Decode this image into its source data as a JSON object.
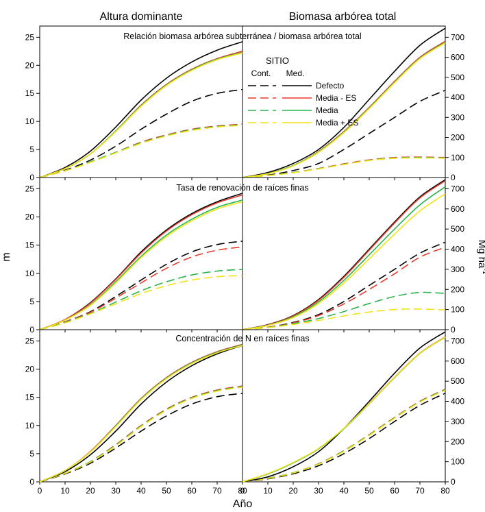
{
  "figure": {
    "col_titles": [
      "Altura dominante",
      "Biomasa arbórea total"
    ],
    "y_left_label": "m",
    "y_right_label": "Mg ha",
    "y_right_label_sup": "-1",
    "x_label": "Año"
  },
  "legend": {
    "header": "SITIO",
    "col_cont": "Cont.",
    "col_med": "Med.",
    "entries": [
      {
        "label": "Defecto",
        "color": "#000000"
      },
      {
        "label": "Media - ES",
        "color": "#e8392a"
      },
      {
        "label": "Media",
        "color": "#2ab34a"
      },
      {
        "label": "Media + ES",
        "color": "#f2e21a"
      }
    ]
  },
  "chart_data": [
    {
      "type": "line",
      "row_title": "Relación biomasa arbórea subterránea / biomasa arbórea total",
      "x": [
        0,
        10,
        20,
        30,
        40,
        50,
        60,
        70,
        80
      ],
      "xlim": [
        0,
        80
      ],
      "xticks": [
        0,
        10,
        20,
        30,
        40,
        50,
        60,
        70,
        80
      ],
      "left": {
        "ylabel": "m",
        "ylim": [
          0,
          27
        ],
        "yticks": [
          0,
          5,
          10,
          15,
          20,
          25
        ],
        "series": [
          {
            "name": "Defecto",
            "site": "Med.",
            "color": "#000000",
            "values": [
              0,
              1.8,
              4.7,
              9.0,
              13.8,
              17.7,
              20.6,
              22.7,
              24.2
            ]
          },
          {
            "name": "Media - ES",
            "site": "Med.",
            "color": "#e8392a",
            "values": [
              0,
              1.6,
              4.2,
              8.3,
              12.9,
              16.6,
              19.3,
              21.2,
              22.5
            ]
          },
          {
            "name": "Media",
            "site": "Med.",
            "color": "#2ab34a",
            "values": [
              0,
              1.6,
              4.2,
              8.3,
              12.8,
              16.5,
              19.2,
              21.1,
              22.3
            ]
          },
          {
            "name": "Media + ES",
            "site": "Med.",
            "color": "#f2e21a",
            "values": [
              0,
              1.6,
              4.2,
              8.2,
              12.7,
              16.4,
              19.1,
              21.0,
              22.2
            ]
          },
          {
            "name": "Defecto",
            "site": "Cont.",
            "color": "#000000",
            "values": [
              0,
              1.3,
              3.1,
              5.6,
              8.6,
              11.3,
              13.6,
              15.0,
              15.7
            ]
          },
          {
            "name": "Media - ES",
            "site": "Cont.",
            "color": "#e8392a",
            "values": [
              0,
              1.2,
              2.8,
              4.5,
              6.3,
              7.6,
              8.6,
              9.2,
              9.5
            ]
          },
          {
            "name": "Media",
            "site": "Cont.",
            "color": "#2ab34a",
            "values": [
              0,
              1.2,
              2.8,
              4.5,
              6.2,
              7.5,
              8.5,
              9.1,
              9.4
            ]
          },
          {
            "name": "Media + ES",
            "site": "Cont.",
            "color": "#f2e21a",
            "values": [
              0,
              1.2,
              2.7,
              4.4,
              6.1,
              7.4,
              8.4,
              9.0,
              9.3
            ]
          }
        ]
      },
      "right": {
        "ylabel": "Mg ha-1",
        "ylim": [
          0,
          756
        ],
        "yticks": [
          0,
          100,
          200,
          300,
          400,
          500,
          600,
          700
        ],
        "series": [
          {
            "name": "Defecto",
            "site": "Med.",
            "color": "#000000",
            "values": [
              0,
              25,
              70,
              140,
              250,
              390,
              530,
              660,
              745
            ]
          },
          {
            "name": "Media - ES",
            "site": "Med.",
            "color": "#e8392a",
            "values": [
              0,
              20,
              60,
              130,
              230,
              350,
              480,
              600,
              680
            ]
          },
          {
            "name": "Media",
            "site": "Med.",
            "color": "#2ab34a",
            "values": [
              0,
              20,
              60,
              128,
              227,
              347,
              476,
              596,
              675
            ]
          },
          {
            "name": "Media + ES",
            "site": "Med.",
            "color": "#f2e21a",
            "values": [
              0,
              19,
              58,
              126,
              224,
              344,
              473,
              593,
              672
            ]
          },
          {
            "name": "Defecto",
            "site": "Cont.",
            "color": "#000000",
            "values": [
              0,
              12,
              35,
              70,
              140,
              220,
              300,
              380,
              435
            ]
          },
          {
            "name": "Media - ES",
            "site": "Cont.",
            "color": "#e8392a",
            "values": [
              0,
              10,
              25,
              45,
              68,
              88,
              100,
              102,
              100
            ]
          },
          {
            "name": "Media",
            "site": "Cont.",
            "color": "#2ab34a",
            "values": [
              0,
              10,
              25,
              44,
              66,
              86,
              98,
              100,
              98
            ]
          },
          {
            "name": "Media + ES",
            "site": "Cont.",
            "color": "#f2e21a",
            "values": [
              0,
              10,
              24,
              43,
              65,
              85,
              96,
              98,
              96
            ]
          }
        ]
      }
    },
    {
      "type": "line",
      "row_title": "Tasa de renovación de raíces finas",
      "x": [
        0,
        10,
        20,
        30,
        40,
        50,
        60,
        70,
        80
      ],
      "xlim": [
        0,
        80
      ],
      "xticks": [
        0,
        10,
        20,
        30,
        40,
        50,
        60,
        70,
        80
      ],
      "left": {
        "ylabel": "m",
        "ylim": [
          0,
          27
        ],
        "yticks": [
          0,
          5,
          10,
          15,
          20,
          25
        ],
        "series": [
          {
            "name": "Defecto",
            "site": "Med.",
            "color": "#000000",
            "values": [
              0,
              1.8,
              4.8,
              9.0,
              13.8,
              17.7,
              20.6,
              22.7,
              24.2
            ]
          },
          {
            "name": "Media - ES",
            "site": "Med.",
            "color": "#e8392a",
            "values": [
              0,
              1.8,
              4.7,
              8.9,
              13.6,
              17.5,
              20.4,
              22.5,
              23.9
            ]
          },
          {
            "name": "Media",
            "site": "Med.",
            "color": "#2ab34a",
            "values": [
              0,
              1.7,
              4.4,
              8.5,
              13.0,
              16.8,
              19.6,
              21.7,
              23.0
            ]
          },
          {
            "name": "Media + ES",
            "site": "Med.",
            "color": "#f2e21a",
            "values": [
              0,
              1.7,
              4.3,
              8.3,
              12.8,
              16.5,
              19.3,
              21.4,
              22.7
            ]
          },
          {
            "name": "Defecto",
            "site": "Cont.",
            "color": "#000000",
            "values": [
              0,
              1.4,
              3.2,
              5.9,
              8.8,
              11.6,
              13.8,
              15.1,
              15.7
            ]
          },
          {
            "name": "Media - ES",
            "site": "Cont.",
            "color": "#e8392a",
            "values": [
              0,
              1.4,
              3.1,
              5.6,
              8.3,
              10.9,
              12.9,
              14.1,
              14.7
            ]
          },
          {
            "name": "Media",
            "site": "Cont.",
            "color": "#2ab34a",
            "values": [
              0,
              1.3,
              2.9,
              4.9,
              6.9,
              8.5,
              9.7,
              10.4,
              10.7
            ]
          },
          {
            "name": "Media + ES",
            "site": "Cont.",
            "color": "#f2e21a",
            "values": [
              0,
              1.2,
              2.8,
              4.6,
              6.4,
              7.8,
              8.8,
              9.4,
              9.6
            ]
          }
        ]
      },
      "right": {
        "ylabel": "Mg ha-1",
        "ylim": [
          0,
          756
        ],
        "yticks": [
          0,
          100,
          200,
          300,
          400,
          500,
          600,
          700
        ],
        "series": [
          {
            "name": "Defecto",
            "site": "Med.",
            "color": "#000000",
            "values": [
              0,
              25,
              70,
              150,
              265,
              400,
              535,
              660,
              745
            ]
          },
          {
            "name": "Media - ES",
            "site": "Med.",
            "color": "#e8392a",
            "values": [
              0,
              24,
              68,
              146,
              260,
              395,
              530,
              655,
              740
            ]
          },
          {
            "name": "Media",
            "site": "Med.",
            "color": "#2ab34a",
            "values": [
              0,
              22,
              64,
              138,
              245,
              372,
              500,
              620,
              710
            ]
          },
          {
            "name": "Media + ES",
            "site": "Med.",
            "color": "#f2e21a",
            "values": [
              0,
              21,
              60,
              130,
              232,
              352,
              475,
              590,
              675
            ]
          },
          {
            "name": "Defecto",
            "site": "Cont.",
            "color": "#000000",
            "values": [
              0,
              12,
              36,
              75,
              140,
              220,
              300,
              380,
              435
            ]
          },
          {
            "name": "Media - ES",
            "site": "Cont.",
            "color": "#e8392a",
            "values": [
              0,
              12,
              34,
              70,
              128,
              200,
              278,
              360,
              410
            ]
          },
          {
            "name": "Media",
            "site": "Cont.",
            "color": "#2ab34a",
            "values": [
              0,
              11,
              30,
              55,
              90,
              130,
              165,
              185,
              180
            ]
          },
          {
            "name": "Media + ES",
            "site": "Cont.",
            "color": "#f2e21a",
            "values": [
              0,
              10,
              26,
              46,
              68,
              88,
              100,
              103,
              98
            ]
          }
        ]
      }
    },
    {
      "type": "line",
      "row_title": "Concentración de N en raíces finas",
      "x": [
        0,
        10,
        20,
        30,
        40,
        50,
        60,
        70,
        80
      ],
      "xlim": [
        0,
        80
      ],
      "xticks": [
        0,
        10,
        20,
        30,
        40,
        50,
        60,
        70,
        80
      ],
      "left": {
        "ylabel": "m",
        "ylim": [
          0,
          27
        ],
        "yticks": [
          0,
          5,
          10,
          15,
          20,
          25
        ],
        "series": [
          {
            "name": "Defecto",
            "site": "Med.",
            "color": "#000000",
            "values": [
              0,
              1.8,
              4.8,
              9.0,
              13.8,
              17.7,
              20.6,
              22.7,
              24.2
            ]
          },
          {
            "name": "Media - ES",
            "site": "Med.",
            "color": "#e8392a",
            "values": [
              0,
              2.0,
              5.4,
              10.0,
              14.8,
              18.5,
              21.2,
              23.1,
              24.4
            ]
          },
          {
            "name": "Media",
            "site": "Med.",
            "color": "#2ab34a",
            "values": [
              0,
              2.0,
              5.3,
              9.9,
              14.7,
              18.4,
              21.1,
              23.0,
              24.3
            ]
          },
          {
            "name": "Media + ES",
            "site": "Med.",
            "color": "#f2e21a",
            "values": [
              0,
              2.0,
              5.3,
              9.8,
              14.6,
              18.3,
              21.0,
              22.9,
              24.2
            ]
          },
          {
            "name": "Defecto",
            "site": "Cont.",
            "color": "#000000",
            "values": [
              0,
              1.4,
              3.3,
              6.0,
              9.0,
              11.7,
              13.8,
              15.1,
              15.7
            ]
          },
          {
            "name": "Media - ES",
            "site": "Cont.",
            "color": "#e8392a",
            "values": [
              0,
              1.5,
              3.6,
              6.6,
              10.0,
              12.9,
              15.0,
              16.3,
              17.0
            ]
          },
          {
            "name": "Media",
            "site": "Cont.",
            "color": "#2ab34a",
            "values": [
              0,
              1.5,
              3.6,
              6.5,
              9.9,
              12.8,
              14.9,
              16.2,
              16.9
            ]
          },
          {
            "name": "Media + ES",
            "site": "Cont.",
            "color": "#f2e21a",
            "values": [
              0,
              1.5,
              3.5,
              6.4,
              9.8,
              12.7,
              14.8,
              16.1,
              16.8
            ]
          }
        ]
      },
      "right": {
        "ylabel": "Mg ha-1",
        "ylim": [
          0,
          756
        ],
        "yticks": [
          0,
          100,
          200,
          300,
          400,
          500,
          600,
          700
        ],
        "series": [
          {
            "name": "Defecto",
            "site": "Med.",
            "color": "#000000",
            "values": [
              0,
              25,
              75,
              150,
              265,
              400,
              540,
              665,
              745
            ]
          },
          {
            "name": "Media - ES",
            "site": "Med.",
            "color": "#e8392a",
            "values": [
              0,
              40,
              95,
              165,
              265,
              390,
              520,
              640,
              720
            ]
          },
          {
            "name": "Media",
            "site": "Med.",
            "color": "#2ab34a",
            "values": [
              0,
              39,
              94,
              164,
              264,
              388,
              518,
              638,
              718
            ]
          },
          {
            "name": "Media + ES",
            "site": "Med.",
            "color": "#f2e21a",
            "values": [
              0,
              41,
              96,
              166,
              266,
              389,
              519,
              639,
              719
            ]
          },
          {
            "name": "Defecto",
            "site": "Cont.",
            "color": "#000000",
            "values": [
              0,
              15,
              40,
              80,
              140,
              215,
              300,
              380,
              440
            ]
          },
          {
            "name": "Media - ES",
            "site": "Cont.",
            "color": "#e8392a",
            "values": [
              0,
              18,
              45,
              90,
              155,
              235,
              320,
              400,
              460
            ]
          },
          {
            "name": "Media",
            "site": "Cont.",
            "color": "#2ab34a",
            "values": [
              0,
              18,
              45,
              89,
              154,
              233,
              318,
              398,
              458
            ]
          },
          {
            "name": "Media + ES",
            "site": "Cont.",
            "color": "#f2e21a",
            "values": [
              0,
              17,
              44,
              88,
              152,
              231,
              316,
              396,
              455
            ]
          }
        ]
      }
    }
  ]
}
